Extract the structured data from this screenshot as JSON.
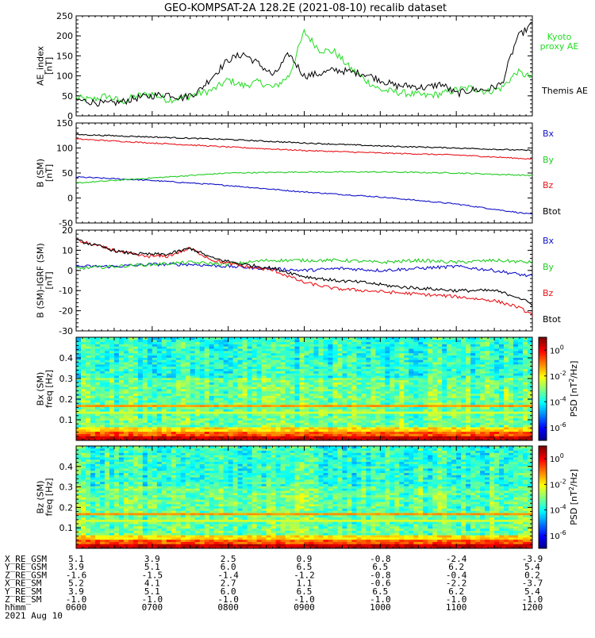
{
  "title": "GEO-KOMPSAT-2A 128.2E (2021-08-10) recalib dataset",
  "colors": {
    "black": "#000000",
    "red": "#e8141a",
    "green": "#22cc22",
    "blue": "#1010c8",
    "kyoto": "#22dd22"
  },
  "chart_data": [
    {
      "type": "line",
      "name": "ae-panel",
      "ylabel": "AE_index [nT]",
      "ylabel_lines": [
        "AE_index",
        "[nT]"
      ],
      "ylim": [
        0,
        250
      ],
      "yticks": [
        0,
        50,
        100,
        150,
        200,
        250
      ],
      "xlim": [
        6,
        12
      ],
      "series": [
        {
          "name": "Kyoto proxy AE",
          "label_lines": [
            "Kyoto",
            "proxy AE"
          ],
          "color": "#22dd22",
          "x": [
            6.0,
            6.2,
            6.4,
            6.6,
            6.8,
            7.0,
            7.2,
            7.4,
            7.6,
            7.8,
            8.0,
            8.2,
            8.4,
            8.6,
            8.8,
            9.0,
            9.2,
            9.4,
            9.6,
            9.8,
            10.0,
            10.2,
            10.4,
            10.6,
            10.8,
            11.0,
            11.2,
            11.4,
            11.6,
            11.8,
            12.0
          ],
          "y": [
            45,
            40,
            50,
            35,
            50,
            55,
            40,
            45,
            55,
            65,
            90,
            75,
            85,
            70,
            100,
            210,
            165,
            160,
            120,
            90,
            65,
            60,
            55,
            50,
            55,
            65,
            70,
            60,
            70,
            110,
            95
          ]
        },
        {
          "name": "Themis AE",
          "label_lines": [
            "Themis AE"
          ],
          "color": "#000000",
          "x": [
            6.0,
            6.2,
            6.4,
            6.6,
            6.8,
            7.0,
            7.2,
            7.4,
            7.6,
            7.8,
            8.0,
            8.2,
            8.4,
            8.6,
            8.8,
            9.0,
            9.2,
            9.4,
            9.6,
            9.8,
            10.0,
            10.2,
            10.4,
            10.6,
            10.8,
            11.0,
            11.2,
            11.4,
            11.6,
            11.8,
            12.0
          ],
          "y": [
            40,
            35,
            30,
            35,
            45,
            50,
            55,
            45,
            60,
            100,
            140,
            155,
            130,
            100,
            155,
            100,
            105,
            115,
            110,
            105,
            90,
            75,
            75,
            70,
            80,
            55,
            65,
            65,
            80,
            195,
            230
          ]
        }
      ]
    },
    {
      "type": "line",
      "name": "b-sm-panel",
      "ylabel": "B (SM) [nT]",
      "ylabel_lines": [
        "B (SM)",
        "[nT]"
      ],
      "ylim": [
        -50,
        150
      ],
      "yticks": [
        -50,
        0,
        50,
        100,
        150
      ],
      "xlim": [
        6,
        12
      ],
      "series": [
        {
          "name": "Bx",
          "color": "#1010c8",
          "x": [
            6,
            7,
            8,
            9,
            10,
            11,
            12
          ],
          "y": [
            42,
            35,
            25,
            12,
            2,
            -12,
            -33
          ]
        },
        {
          "name": "By",
          "color": "#22cc22",
          "x": [
            6,
            7,
            8,
            9,
            10,
            11,
            12
          ],
          "y": [
            30,
            40,
            50,
            52,
            52,
            50,
            45
          ]
        },
        {
          "name": "Bz",
          "color": "#e8141a",
          "x": [
            6,
            7,
            8,
            9,
            10,
            11,
            12
          ],
          "y": [
            118,
            110,
            102,
            95,
            90,
            86,
            78
          ]
        },
        {
          "name": "Btot",
          "color": "#000000",
          "x": [
            6,
            7,
            8,
            9,
            10,
            11,
            12
          ],
          "y": [
            127,
            122,
            117,
            110,
            104,
            100,
            95
          ]
        }
      ]
    },
    {
      "type": "line",
      "name": "dB-panel",
      "ylabel": "B (SM)-IGRF (SM) [nT]",
      "ylabel_lines": [
        "B (SM)-IGRF (SM)",
        "[nT]"
      ],
      "ylim": [
        -30,
        20
      ],
      "yticks": [
        -30,
        -20,
        -10,
        0,
        10,
        20
      ],
      "xlim": [
        6,
        12
      ],
      "series": [
        {
          "name": "Bx",
          "color": "#1010c8",
          "x": [
            6.0,
            6.5,
            7.0,
            7.5,
            8.0,
            8.5,
            9.0,
            9.5,
            10.0,
            10.5,
            11.0,
            11.5,
            12.0
          ],
          "y": [
            2,
            2,
            3,
            3,
            2,
            1,
            0,
            1,
            0,
            1,
            2,
            0,
            -3
          ]
        },
        {
          "name": "By",
          "color": "#22cc22",
          "x": [
            6.0,
            6.5,
            7.0,
            7.5,
            8.0,
            8.5,
            9.0,
            9.5,
            10.0,
            10.5,
            11.0,
            11.5,
            12.0
          ],
          "y": [
            1,
            2,
            3,
            4,
            3,
            5,
            5,
            5,
            4,
            5,
            4,
            5,
            4
          ]
        },
        {
          "name": "Bz",
          "color": "#e8141a",
          "x": [
            6.0,
            6.3,
            6.6,
            6.9,
            7.2,
            7.5,
            7.8,
            8.2,
            8.6,
            9.0,
            9.4,
            9.8,
            10.2,
            10.6,
            11.0,
            11.5,
            11.8,
            12.0
          ],
          "y": [
            15,
            12,
            9,
            7,
            7,
            11,
            5,
            2,
            0,
            -6,
            -9,
            -10,
            -11,
            -12,
            -13,
            -15,
            -18,
            -22
          ]
        },
        {
          "name": "Btot",
          "color": "#000000",
          "x": [
            6.0,
            6.3,
            6.6,
            6.9,
            7.2,
            7.5,
            7.8,
            8.2,
            8.6,
            9.0,
            9.4,
            9.8,
            10.2,
            10.6,
            11.0,
            11.5,
            11.8,
            12.0
          ],
          "y": [
            15,
            12,
            9,
            8,
            8,
            11,
            6,
            3,
            1,
            -3,
            -5,
            -6,
            -8,
            -9,
            -10,
            -10,
            -13,
            -17
          ]
        }
      ]
    },
    {
      "type": "heatmap",
      "name": "bx-spectrogram",
      "ylabel": "Bx (SM) freq [Hz]",
      "ylabel_lines": [
        "Bx (SM)",
        "freq [Hz]"
      ],
      "ylim": [
        0,
        0.5
      ],
      "yticks": [
        0.1,
        0.2,
        0.3,
        0.4
      ],
      "xlim": [
        6,
        12
      ],
      "colorbar_label": "PSD [nT^2/Hz]",
      "colorbar_label_parts": [
        "PSD [nT",
        "2",
        "/Hz]"
      ],
      "colorbar_ticks": [
        {
          "base": "10",
          "exp": "0",
          "v": 0
        },
        {
          "base": "10",
          "exp": "-2",
          "v": -2
        },
        {
          "base": "10",
          "exp": "-4",
          "v": -4
        },
        {
          "base": "10",
          "exp": "-6",
          "v": -6
        }
      ],
      "colorbar_range": [
        -7,
        1
      ]
    },
    {
      "type": "heatmap",
      "name": "bz-spectrogram",
      "ylabel": "Bz (SM) freq [Hz]",
      "ylabel_lines": [
        "Bz (SM)",
        "freq [Hz]"
      ],
      "ylim": [
        0,
        0.5
      ],
      "yticks": [
        0.1,
        0.2,
        0.3,
        0.4
      ],
      "xlim": [
        6,
        12
      ],
      "colorbar_label": "PSD [nT^2/Hz]",
      "colorbar_label_parts": [
        "PSD [nT",
        "2",
        "/Hz]"
      ],
      "colorbar_ticks": [
        {
          "base": "10",
          "exp": "0",
          "v": 0
        },
        {
          "base": "10",
          "exp": "-2",
          "v": -2
        },
        {
          "base": "10",
          "exp": "-4",
          "v": -4
        },
        {
          "base": "10",
          "exp": "-6",
          "v": -6
        }
      ],
      "colorbar_range": [
        -7,
        1
      ]
    }
  ],
  "ephemeris": {
    "rows": [
      {
        "label": "X_RE_GSM",
        "values": [
          "5.1",
          "3.9",
          "2.5",
          "0.9",
          "-0.8",
          "-2.4",
          "-3.9"
        ]
      },
      {
        "label": "Y_RE_GSM",
        "values": [
          "3.9",
          "5.1",
          "6.0",
          "6.5",
          "6.5",
          "6.2",
          "5.4"
        ]
      },
      {
        "label": "Z_RE_GSM",
        "values": [
          "-1.6",
          "-1.5",
          "-1.4",
          "-1.2",
          "-0.8",
          "-0.4",
          "0.2"
        ]
      },
      {
        "label": "X_RE_SM",
        "values": [
          "5.2",
          "4.1",
          "2.7",
          "1.1",
          "-0.6",
          "-2.2",
          "-3.7"
        ]
      },
      {
        "label": "Y_RE_SM",
        "values": [
          "3.9",
          "5.1",
          "6.0",
          "6.5",
          "6.5",
          "6.2",
          "5.4"
        ]
      },
      {
        "label": "Z_RE_SM",
        "values": [
          "-1.0",
          "-1.0",
          "-1.0",
          "-1.0",
          "-1.0",
          "-1.0",
          "-1.0"
        ]
      },
      {
        "label": "hhmm",
        "values": [
          "0600",
          "0700",
          "0800",
          "0900",
          "1000",
          "1100",
          "1200"
        ]
      }
    ],
    "date": "2021 Aug 10"
  }
}
